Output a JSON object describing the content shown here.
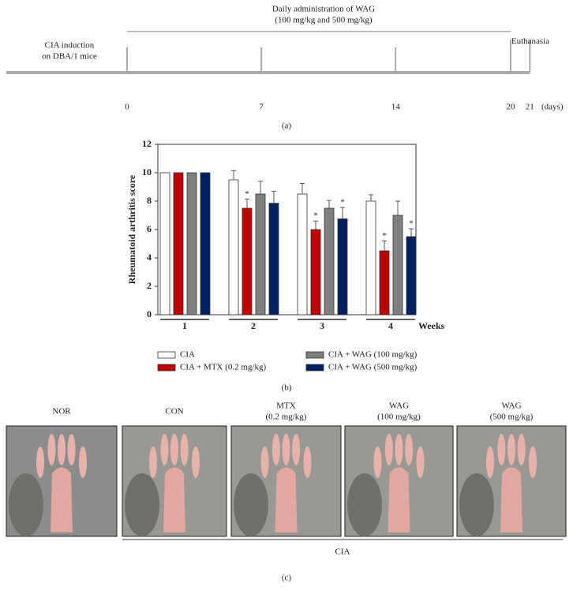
{
  "timeline": {
    "start_label": [
      "CIA induction",
      "on DBA/1 mice"
    ],
    "treatment_label": [
      "Daily administration of WAG",
      "(100 mg/kg and 500 mg/kg)"
    ],
    "end_label": "Euthanasia",
    "ticks": [
      0,
      7,
      14,
      20,
      21
    ],
    "unit": "(days)",
    "caption": "(a)"
  },
  "chart_data": {
    "type": "bar",
    "y_label": "Rheumatoid arthritis score",
    "x_label": "Weeks",
    "categories": [
      "1",
      "2",
      "3",
      "4"
    ],
    "series": [
      {
        "name": "CIA",
        "color": "#ffffff",
        "values": [
          10,
          9.5,
          8.5,
          8
        ],
        "errors": [
          0,
          0.65,
          0.75,
          0.45
        ],
        "significance": [
          null,
          null,
          null,
          null
        ]
      },
      {
        "name": "CIA + MTX (0.2 mg/kg)",
        "color": "#c00000",
        "values": [
          10,
          7.5,
          6,
          4.5
        ],
        "errors": [
          0,
          0.65,
          0.6,
          0.7
        ],
        "significance": [
          null,
          "*",
          "*",
          "*"
        ]
      },
      {
        "name": "CIA + WAG (100 mg/kg)",
        "color": "#7f7f7f",
        "values": [
          10,
          8.5,
          7.5,
          7
        ],
        "errors": [
          0,
          0.9,
          0.55,
          1.0
        ],
        "significance": [
          null,
          null,
          null,
          null
        ]
      },
      {
        "name": "CIA + WAG (500 mg/kg)",
        "color": "#002060",
        "values": [
          10,
          7.85,
          6.75,
          5.5
        ],
        "errors": [
          0,
          0.85,
          0.8,
          0.55
        ],
        "significance": [
          null,
          null,
          "*",
          "*"
        ]
      }
    ],
    "ylim": [
      0,
      12
    ],
    "yticks": [
      0,
      2,
      4,
      6,
      8,
      10,
      12
    ],
    "caption": "(b)"
  },
  "photos": {
    "panels": [
      [
        "NOR"
      ],
      [
        "CON"
      ],
      [
        "MTX",
        "(0.2 mg/kg)"
      ],
      [
        "WAG",
        "(100 mg/kg)"
      ],
      [
        "WAG",
        "(500 mg/kg)"
      ]
    ],
    "group_label": "CIA",
    "caption": "(c)"
  }
}
